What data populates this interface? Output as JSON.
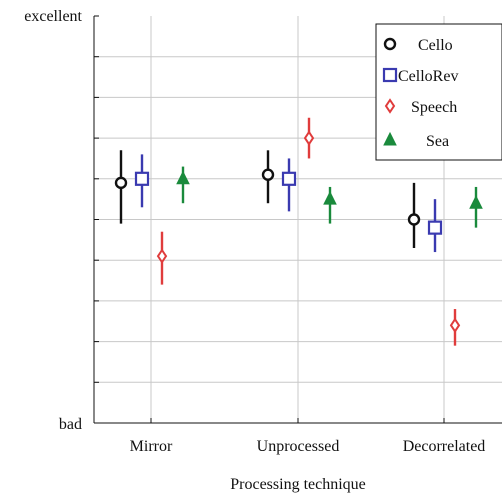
{
  "chart_data": {
    "type": "scatter",
    "title": "",
    "xlabel": "Processing technique",
    "ylabel": "",
    "categories": [
      "Mirror",
      "Unprocessed",
      "Decorrelated"
    ],
    "y_top_label": "excellent",
    "y_bottom_label": "bad",
    "ylim": [
      0,
      10
    ],
    "grid": true,
    "legend_position": "top-right",
    "series": [
      {
        "name": "Cello",
        "color": "#111111",
        "marker": "circle",
        "values": [
          5.9,
          6.1,
          5.0
        ],
        "error_low": [
          4.9,
          5.4,
          4.3
        ],
        "error_high": [
          6.7,
          6.7,
          5.9
        ]
      },
      {
        "name": "CelloRev",
        "color": "#3a3ab0",
        "marker": "square",
        "values": [
          6.0,
          6.0,
          4.8
        ],
        "error_low": [
          5.3,
          5.2,
          4.2
        ],
        "error_high": [
          6.6,
          6.5,
          5.5
        ]
      },
      {
        "name": "Speech",
        "color": "#e03c3c",
        "marker": "diamond",
        "values": [
          4.1,
          7.0,
          2.4
        ],
        "error_low": [
          3.4,
          6.5,
          1.9
        ],
        "error_high": [
          4.7,
          7.5,
          2.8
        ]
      },
      {
        "name": "Sea",
        "color": "#1a8a3c",
        "marker": "triangle",
        "values": [
          6.0,
          5.5,
          5.4
        ],
        "error_low": [
          5.4,
          4.9,
          4.8
        ],
        "error_high": [
          6.3,
          5.8,
          5.8
        ]
      }
    ]
  }
}
